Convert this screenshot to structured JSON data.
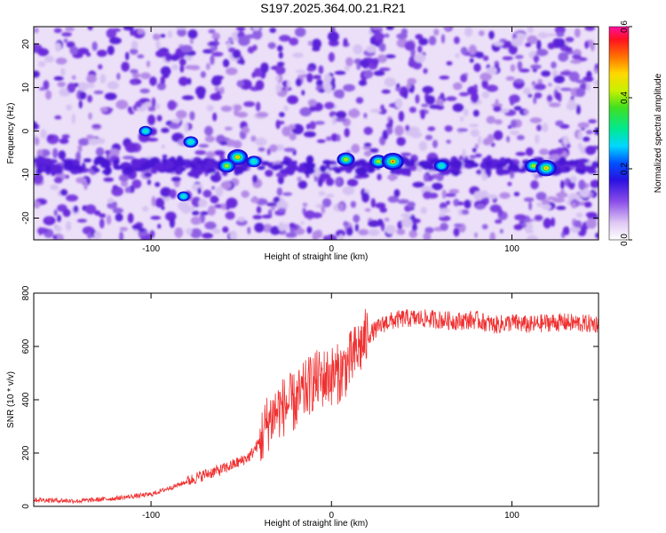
{
  "title": "S197.2025.364.00.21.R21",
  "chart_data": [
    {
      "type": "heatmap",
      "xlabel": "Height of straight line (km)",
      "ylabel": "Frequency (Hz)",
      "xlim": [
        -165,
        148
      ],
      "ylim": [
        -25,
        24
      ],
      "x_ticks": [
        -100,
        0,
        100
      ],
      "x_tick_labels": [
        "-100",
        "0",
        "100"
      ],
      "y_ticks": [
        -20,
        -10,
        0,
        10,
        20
      ],
      "y_tick_labels": [
        "-20",
        "-10",
        "0",
        "10",
        "20"
      ],
      "colorbar": {
        "label": "Normalized spectral amplitude",
        "range": [
          0.0,
          0.6
        ],
        "ticks": [
          0.0,
          0.2,
          0.4,
          0.6
        ],
        "tick_labels": [
          "0.0",
          "0.2",
          "0.4",
          "0.6"
        ]
      },
      "signal_band": {
        "description_frequency_hz": [
          -6,
          -9
        ],
        "hotspots": [
          {
            "x": -52,
            "y": -6,
            "value": 0.42
          },
          {
            "x": -58,
            "y": -8,
            "value": 0.3
          },
          {
            "x": -43,
            "y": -7,
            "value": 0.2
          },
          {
            "x": 8,
            "y": -6.5,
            "value": 0.32
          },
          {
            "x": 26,
            "y": -7,
            "value": 0.3
          },
          {
            "x": 34,
            "y": -7,
            "value": 0.5
          },
          {
            "x": 61,
            "y": -8,
            "value": 0.2
          },
          {
            "x": 112,
            "y": -8,
            "value": 0.3
          },
          {
            "x": 119,
            "y": -8.5,
            "value": 0.45
          },
          {
            "x": -78,
            "y": -2.5,
            "value": 0.2
          },
          {
            "x": -103,
            "y": 0,
            "value": 0.15
          },
          {
            "x": -82,
            "y": -15,
            "value": 0.12
          }
        ]
      }
    },
    {
      "type": "line",
      "xlabel": "Height of straight line (km)",
      "ylabel": "SNR (10 * v/v)",
      "xlim": [
        -165,
        148
      ],
      "ylim": [
        0,
        800
      ],
      "x_ticks": [
        -100,
        0,
        100
      ],
      "x_tick_labels": [
        "-100",
        "0",
        "100"
      ],
      "y_ticks": [
        0,
        200,
        400,
        600,
        800
      ],
      "y_tick_labels": [
        "0",
        "200",
        "400",
        "600",
        "800"
      ],
      "color": "#f03030",
      "x": [
        -165,
        -140,
        -120,
        -100,
        -85,
        -70,
        -60,
        -50,
        -45,
        -40,
        -35,
        -30,
        -25,
        -20,
        -15,
        -10,
        -5,
        0,
        5,
        10,
        15,
        20,
        30,
        40,
        50,
        60,
        70,
        80,
        90,
        100,
        110,
        120,
        130,
        140,
        148
      ],
      "y": [
        25,
        20,
        30,
        45,
        80,
        120,
        140,
        170,
        190,
        240,
        320,
        360,
        380,
        390,
        430,
        470,
        480,
        490,
        500,
        540,
        590,
        640,
        690,
        705,
        705,
        700,
        695,
        700,
        680,
        690,
        680,
        690,
        690,
        685,
        685
      ]
    }
  ]
}
